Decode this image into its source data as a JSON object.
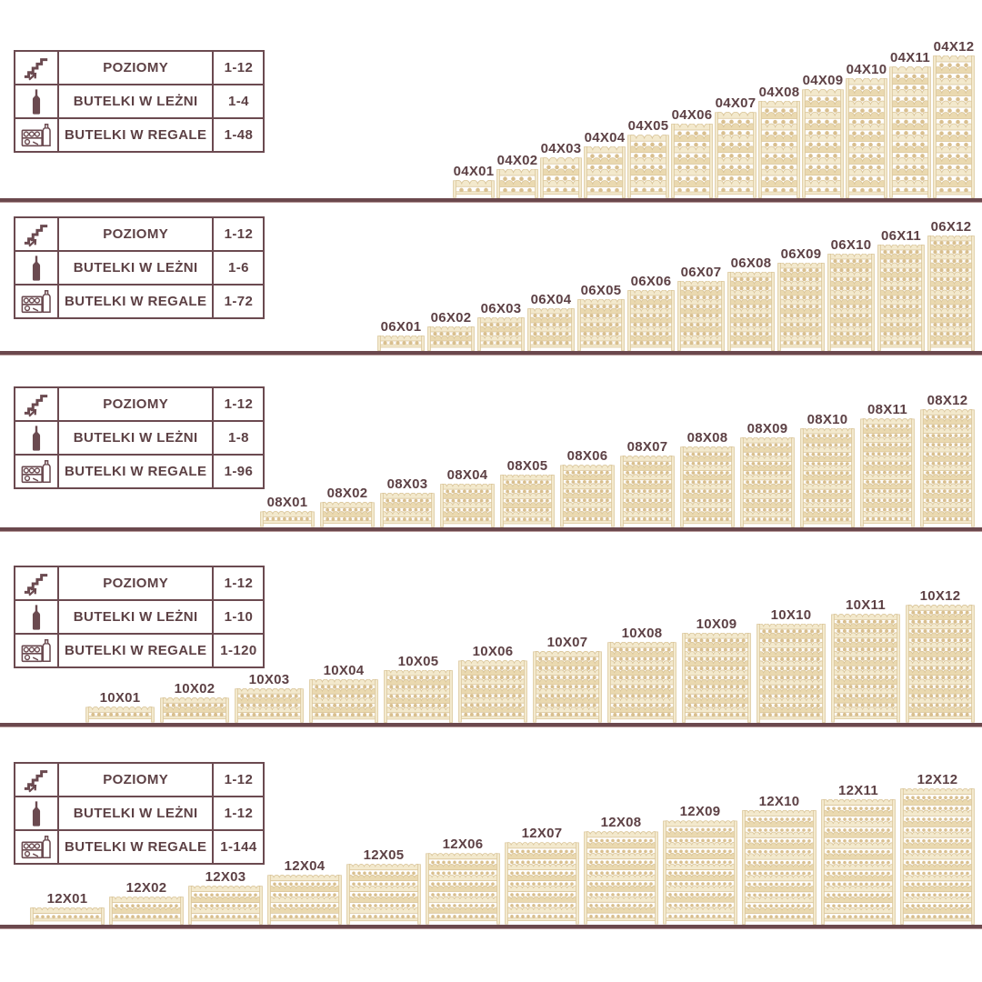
{
  "shared": {
    "row_labels": [
      "POZIOMY",
      "BUTELKI W LEŻNI",
      "BUTELKI W REGALE"
    ],
    "row_icons": [
      "stairs-up-icon",
      "wine-bottle-icon",
      "wine-rack-icon"
    ]
  },
  "colors": {
    "accent_maroon": "#5d4145",
    "table_border": "#6b4a50",
    "floor_line": "#6b484d",
    "floor_line_edge": "#b79a9a",
    "wood_light": "#f3e9cd",
    "wood_mid": "#ead9b0",
    "wood_outline": "#d9c498",
    "wood_dot": "#d9bf8e"
  },
  "sections": [
    {
      "series": "04",
      "values": [
        "1-12",
        "1-4",
        "1-48"
      ],
      "bottles_per_level": 4,
      "max_levels": 12,
      "racks": [
        {
          "label": "04X01",
          "levels": 1
        },
        {
          "label": "04X02",
          "levels": 2
        },
        {
          "label": "04X03",
          "levels": 3
        },
        {
          "label": "04X04",
          "levels": 4
        },
        {
          "label": "04X05",
          "levels": 5
        },
        {
          "label": "04X06",
          "levels": 6
        },
        {
          "label": "04X07",
          "levels": 7
        },
        {
          "label": "04X08",
          "levels": 8
        },
        {
          "label": "04X09",
          "levels": 9
        },
        {
          "label": "04X10",
          "levels": 10
        },
        {
          "label": "04X11",
          "levels": 11
        },
        {
          "label": "04X12",
          "levels": 12
        }
      ]
    },
    {
      "series": "06",
      "values": [
        "1-12",
        "1-6",
        "1-72"
      ],
      "bottles_per_level": 6,
      "max_levels": 12,
      "racks": [
        {
          "label": "06X01",
          "levels": 1
        },
        {
          "label": "06X02",
          "levels": 2
        },
        {
          "label": "06X03",
          "levels": 3
        },
        {
          "label": "06X04",
          "levels": 4
        },
        {
          "label": "06X05",
          "levels": 5
        },
        {
          "label": "06X06",
          "levels": 6
        },
        {
          "label": "06X07",
          "levels": 7
        },
        {
          "label": "06X08",
          "levels": 8
        },
        {
          "label": "06X09",
          "levels": 9
        },
        {
          "label": "06X10",
          "levels": 10
        },
        {
          "label": "06X11",
          "levels": 11
        },
        {
          "label": "06X12",
          "levels": 12
        }
      ]
    },
    {
      "series": "08",
      "values": [
        "1-12",
        "1-8",
        "1-96"
      ],
      "bottles_per_level": 8,
      "max_levels": 12,
      "racks": [
        {
          "label": "08X01",
          "levels": 1
        },
        {
          "label": "08X02",
          "levels": 2
        },
        {
          "label": "08X03",
          "levels": 3
        },
        {
          "label": "08X04",
          "levels": 4
        },
        {
          "label": "08X05",
          "levels": 5
        },
        {
          "label": "08X06",
          "levels": 6
        },
        {
          "label": "08X07",
          "levels": 7
        },
        {
          "label": "08X08",
          "levels": 8
        },
        {
          "label": "08X09",
          "levels": 9
        },
        {
          "label": "08X10",
          "levels": 10
        },
        {
          "label": "08X11",
          "levels": 11
        },
        {
          "label": "08X12",
          "levels": 12
        }
      ]
    },
    {
      "series": "10",
      "values": [
        "1-12",
        "1-10",
        "1-120"
      ],
      "bottles_per_level": 10,
      "max_levels": 12,
      "racks": [
        {
          "label": "10X01",
          "levels": 1
        },
        {
          "label": "10X02",
          "levels": 2
        },
        {
          "label": "10X03",
          "levels": 3
        },
        {
          "label": "10X04",
          "levels": 4
        },
        {
          "label": "10X05",
          "levels": 5
        },
        {
          "label": "10X06",
          "levels": 6
        },
        {
          "label": "10X07",
          "levels": 7
        },
        {
          "label": "10X08",
          "levels": 8
        },
        {
          "label": "10X09",
          "levels": 9
        },
        {
          "label": "10X10",
          "levels": 10
        },
        {
          "label": "10X11",
          "levels": 11
        },
        {
          "label": "10X12",
          "levels": 12
        }
      ]
    },
    {
      "series": "12",
      "values": [
        "1-12",
        "1-12",
        "1-144"
      ],
      "bottles_per_level": 12,
      "max_levels": 12,
      "racks": [
        {
          "label": "12X01",
          "levels": 1
        },
        {
          "label": "12X02",
          "levels": 2
        },
        {
          "label": "12X03",
          "levels": 3
        },
        {
          "label": "12X04",
          "levels": 4
        },
        {
          "label": "12X05",
          "levels": 5
        },
        {
          "label": "12X06",
          "levels": 6
        },
        {
          "label": "12X07",
          "levels": 7
        },
        {
          "label": "12X08",
          "levels": 8
        },
        {
          "label": "12X09",
          "levels": 9
        },
        {
          "label": "12X10",
          "levels": 10
        },
        {
          "label": "12X11",
          "levels": 11
        },
        {
          "label": "12X12",
          "levels": 12
        }
      ]
    }
  ]
}
